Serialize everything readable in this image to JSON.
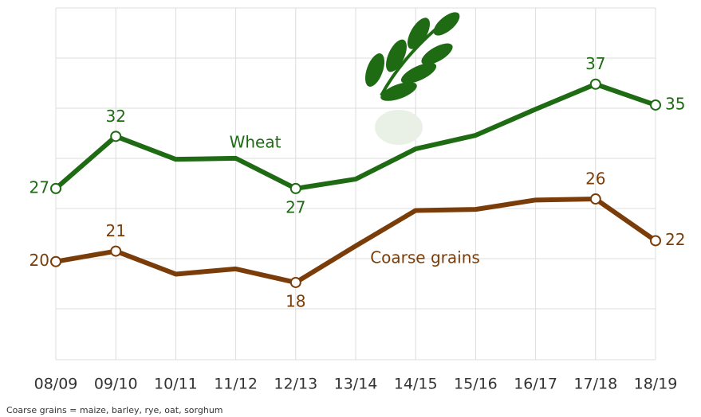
{
  "chart_data": {
    "type": "line",
    "categories": [
      "08/09",
      "09/10",
      "10/11",
      "11/12",
      "12/13",
      "13/14",
      "14/15",
      "15/16",
      "16/17",
      "17/18",
      "18/19"
    ],
    "series": [
      {
        "name": "Wheat",
        "color": "#1e6b14",
        "values": [
          27,
          32,
          29.8,
          29.9,
          27,
          27.9,
          30.8,
          32.1,
          34.6,
          37,
          35
        ],
        "value_labels": [
          "27",
          "32",
          null,
          null,
          "27",
          null,
          null,
          null,
          null,
          "37",
          "35"
        ]
      },
      {
        "name": "Coarse grains",
        "color": "#7a3d0a",
        "values": [
          20,
          21,
          18.8,
          19.3,
          18,
          21.5,
          24.9,
          25,
          25.9,
          26,
          22
        ],
        "value_labels": [
          "20",
          "21",
          null,
          null,
          "18",
          null,
          null,
          null,
          null,
          "26",
          "22"
        ]
      }
    ],
    "ylim": [
      10.6,
      44.3
    ],
    "footnote": "Coarse grains = maize, barley, rye, oat, sorghum"
  }
}
